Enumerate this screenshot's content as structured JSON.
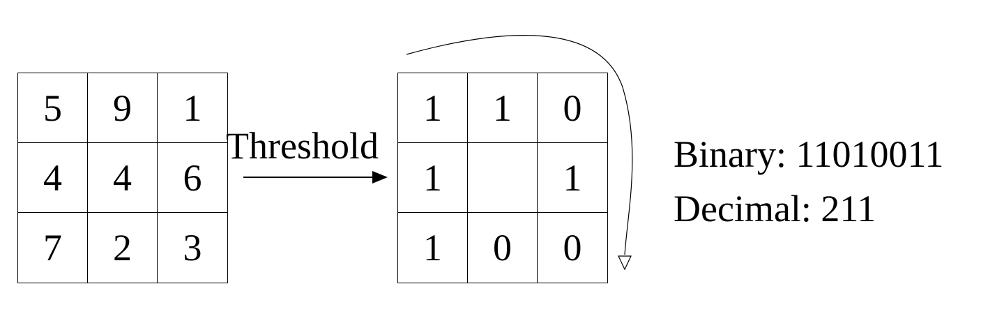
{
  "input_grid": {
    "cells": [
      [
        "5",
        "9",
        "1"
      ],
      [
        "4",
        "4",
        "6"
      ],
      [
        "7",
        "2",
        "3"
      ]
    ]
  },
  "threshold": {
    "label": "Threshold"
  },
  "binary_grid": {
    "cells": [
      [
        "1",
        "1",
        "0"
      ],
      [
        "1",
        "",
        "1"
      ],
      [
        "1",
        "0",
        "0"
      ]
    ]
  },
  "result": {
    "binary_label": "Binary:",
    "binary_value": "11010011",
    "decimal_label": "Decimal:",
    "decimal_value": "211"
  }
}
